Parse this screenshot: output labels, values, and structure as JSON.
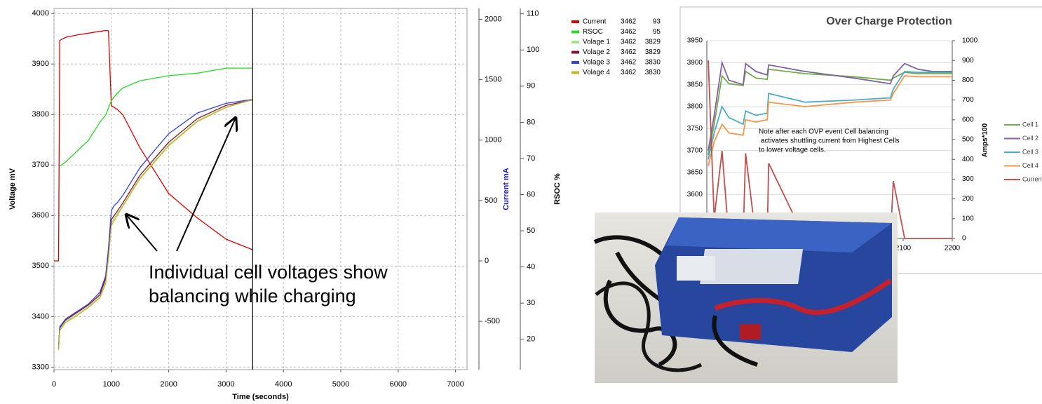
{
  "chart_data": [
    {
      "type": "line",
      "x_label": "Time (seconds)",
      "y_label": "Voltage mV",
      "y2_label": "Current mA",
      "y3_label": "RSOC %",
      "xlim": [
        0,
        7200
      ],
      "xticks": [
        0,
        1000,
        2000,
        3000,
        4000,
        5000,
        6000,
        7000
      ],
      "ylim": [
        3295,
        4010
      ],
      "yticks": [
        3300,
        3400,
        3500,
        3600,
        3700,
        3800,
        3900,
        4000
      ],
      "y2lim": [
        -900,
        2090
      ],
      "y2ticks": [
        -500,
        0,
        500,
        1000,
        1500,
        2000
      ],
      "y3lim": [
        11.6,
        111.5
      ],
      "y3ticks": [
        20,
        30,
        40,
        50,
        60,
        70,
        80,
        90,
        100,
        110
      ],
      "grid": true,
      "cursor_x": 3462,
      "annotation": [
        "Individual cell voltages show",
        "balancing while charging"
      ],
      "x": [
        0,
        80,
        100,
        200,
        400,
        600,
        800,
        900,
        950,
        1000,
        1050,
        1100,
        1200,
        1500,
        2000,
        2500,
        3000,
        3462
      ],
      "series": [
        {
          "name": "Current",
          "color": "#e00000",
          "axis": "y2",
          "readout": 93,
          "values": [
            0,
            0,
            1825,
            1850,
            1870,
            1885,
            1900,
            1907,
            1905,
            1285,
            1270,
            1255,
            1210,
            936,
            558,
            355,
            180,
            93
          ]
        },
        {
          "name": "RSOC",
          "color": "#22dd22",
          "axis": "y3",
          "readout": 95,
          "values": [
            null,
            null,
            67.9,
            69,
            72,
            75,
            80,
            82,
            84,
            86,
            87,
            88,
            89.5,
            91.5,
            92.9,
            93.6,
            95,
            95
          ]
        },
        {
          "name": "Volage 1",
          "color": "#a8e08a",
          "readout": 3829,
          "values": [
            null,
            3335,
            3375,
            3390,
            3405,
            3420,
            3440,
            3470,
            3520,
            3585,
            3595,
            3603,
            3620,
            3675,
            3740,
            3788,
            3815,
            3829
          ]
        },
        {
          "name": "Volage 2",
          "color": "#8b1030",
          "readout": 3829,
          "values": [
            null,
            3337,
            3378,
            3393,
            3408,
            3423,
            3443,
            3475,
            3525,
            3592,
            3600,
            3608,
            3625,
            3680,
            3745,
            3792,
            3818,
            3829
          ]
        },
        {
          "name": "Volage 3",
          "color": "#3344dd",
          "readout": 3830,
          "values": [
            null,
            3338,
            3380,
            3395,
            3410,
            3425,
            3448,
            3480,
            3535,
            3610,
            3620,
            3625,
            3640,
            3695,
            3762,
            3803,
            3822,
            3830
          ]
        },
        {
          "name": "Volage 4",
          "color": "#c8b428",
          "readout": 3830,
          "values": [
            null,
            3334,
            3372,
            3388,
            3402,
            3418,
            3437,
            3465,
            3515,
            3580,
            3590,
            3600,
            3618,
            3673,
            3738,
            3786,
            3814,
            3830
          ]
        }
      ]
    },
    {
      "type": "line",
      "title": "Over Charge Protection",
      "y2_label": "Amps*100",
      "note": [
        "Note after each OVP event Cell balancing",
        " activates shuttling current from Highest Cells",
        "to lower voltage cells."
      ],
      "xlim": [
        1700,
        2200
      ],
      "xticks": [
        2100,
        2200
      ],
      "ylim": [
        3500,
        3950
      ],
      "yticks": [
        3600,
        3650,
        3700,
        3750,
        3800,
        3850,
        3900,
        3950
      ],
      "y2lim": [
        0,
        1000
      ],
      "y2ticks": [
        0,
        100,
        200,
        300,
        400,
        500,
        600,
        700,
        800,
        900,
        1000
      ],
      "x": [
        1703,
        1715,
        1731,
        1745,
        1774,
        1779,
        1800,
        1823,
        1826,
        1900,
        2000,
        2074,
        2080,
        2103,
        2130,
        2160,
        2200
      ],
      "series": [
        {
          "name": "Cell 1",
          "color": "#70ad47",
          "values": [
            3690,
            3760,
            3870,
            3852,
            3848,
            3880,
            3865,
            3862,
            3885,
            3875,
            3868,
            3860,
            3865,
            3878,
            3875,
            3875,
            3875
          ]
        },
        {
          "name": "Cell 2",
          "color": "#8064a2",
          "values": [
            3700,
            3780,
            3900,
            3860,
            3850,
            3898,
            3880,
            3872,
            3895,
            3880,
            3865,
            3852,
            3870,
            3898,
            3885,
            3880,
            3880
          ]
        },
        {
          "name": "Cell 3",
          "color": "#4bacc6",
          "values": [
            3680,
            3740,
            3800,
            3775,
            3760,
            3790,
            3780,
            3785,
            3830,
            3810,
            3815,
            3820,
            3840,
            3880,
            3878,
            3878,
            3878
          ]
        },
        {
          "name": "Cell 4",
          "color": "#f79646",
          "values": [
            3665,
            3720,
            3760,
            3740,
            3735,
            3770,
            3765,
            3770,
            3810,
            3800,
            3810,
            3815,
            3830,
            3870,
            3868,
            3868,
            3868
          ]
        },
        {
          "name": "Current",
          "color": "#c0504d",
          "axis": "y2",
          "values": [
            900,
            100,
            443,
            0,
            0,
            430,
            0,
            0,
            380,
            0,
            0,
            0,
            290,
            0,
            0,
            0,
            0
          ]
        }
      ]
    }
  ]
}
